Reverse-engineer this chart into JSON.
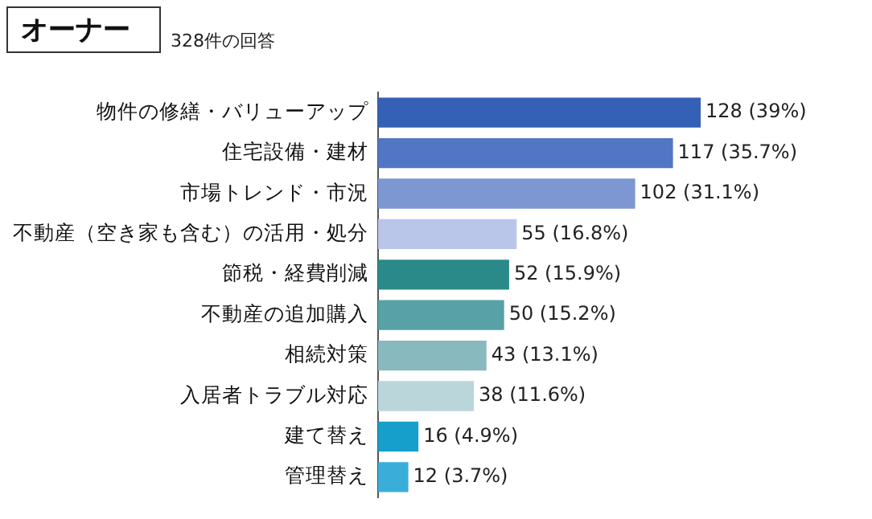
{
  "chart_data": {
    "type": "bar",
    "orientation": "horizontal",
    "title": "オーナー",
    "subtitle": "328件の回答",
    "categories": [
      "物件の修繕・バリューアップ",
      "住宅設備・建材",
      "市場トレンド・市況",
      "不動産（空き家も含む）の活用・処分",
      "節税・経費削減",
      "不動産の追加購入",
      "相続対策",
      "入居者トラブル対応",
      "建て替え",
      "管理替え"
    ],
    "values": [
      128,
      117,
      102,
      55,
      52,
      50,
      43,
      38,
      16,
      12
    ],
    "value_labels": [
      "128 (39%)",
      "117 (35.7%)",
      "102 (31.1%)",
      "55 (16.8%)",
      "52 (15.9%)",
      "50 (15.2%)",
      "43 (13.1%)",
      "38 (11.6%)",
      "16 (4.9%)",
      "12 (3.7%)"
    ],
    "colors": [
      "#3461b6",
      "#5276c4",
      "#7d97d2",
      "#b9c6e9",
      "#2a8a8a",
      "#58a1a6",
      "#87b9be",
      "#bad6db",
      "#169fca",
      "#3aaed8"
    ],
    "tick_labels": "y"
  }
}
